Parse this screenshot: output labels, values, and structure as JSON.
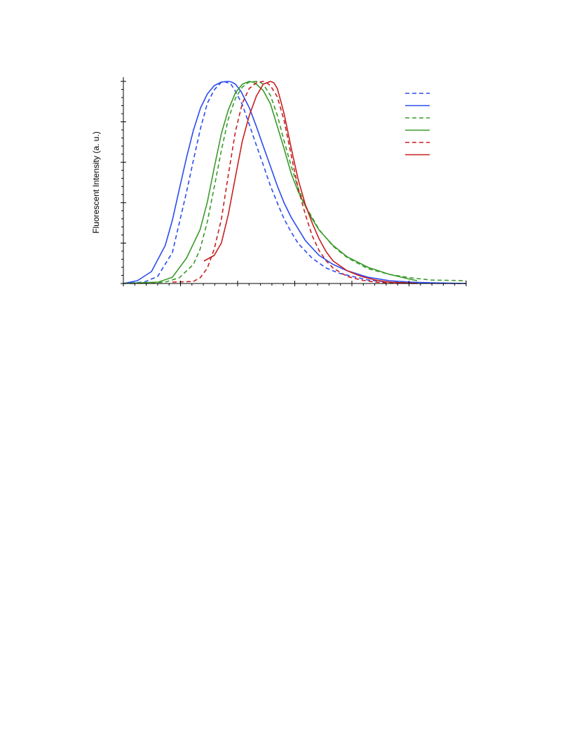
{
  "chart_data": {
    "type": "line",
    "title": "",
    "xlabel": "",
    "ylabel": "Fluorescent Intensity (a. u.)",
    "xlim": [
      0,
      1
    ],
    "ylim": [
      0,
      1
    ],
    "grid": false,
    "legend": {
      "position": "top-right",
      "labels_visible": false
    },
    "x_ticks": {
      "major_count": 7,
      "minor_per_major": 4,
      "labels": []
    },
    "y_ticks": {
      "major_count": 6,
      "minor_per_major": 4,
      "labels": []
    },
    "series": [
      {
        "color": "#2a4cf0",
        "dash": "dashed",
        "x": [
          0.0,
          0.061,
          0.1,
          0.143,
          0.184,
          0.204,
          0.225,
          0.245,
          0.265,
          0.286,
          0.294,
          0.314,
          0.327,
          0.347,
          0.367,
          0.388,
          0.408,
          0.429,
          0.449,
          0.469,
          0.49,
          0.51,
          0.551,
          0.592,
          0.633,
          0.714,
          0.776,
          0.837,
          0.898,
          1.0
        ],
        "y": [
          0.0,
          0.007,
          0.035,
          0.153,
          0.451,
          0.608,
          0.767,
          0.892,
          0.958,
          0.997,
          1.0,
          0.986,
          0.951,
          0.885,
          0.788,
          0.684,
          0.587,
          0.483,
          0.399,
          0.319,
          0.253,
          0.198,
          0.125,
          0.076,
          0.049,
          0.017,
          0.007,
          0.003,
          0.001,
          0.0
        ]
      },
      {
        "color": "#2a4cf0",
        "dash": "solid",
        "x": [
          0.0,
          0.041,
          0.082,
          0.122,
          0.143,
          0.163,
          0.184,
          0.204,
          0.225,
          0.245,
          0.265,
          0.286,
          0.306,
          0.316,
          0.327,
          0.343,
          0.367,
          0.388,
          0.408,
          0.429,
          0.449,
          0.469,
          0.49,
          0.531,
          0.571,
          0.612,
          0.653,
          0.714,
          0.776,
          0.837,
          0.898,
          1.0
        ],
        "y": [
          0.0,
          0.014,
          0.059,
          0.188,
          0.313,
          0.465,
          0.622,
          0.757,
          0.868,
          0.938,
          0.979,
          0.997,
          1.0,
          0.997,
          0.986,
          0.951,
          0.871,
          0.777,
          0.68,
          0.58,
          0.483,
          0.399,
          0.326,
          0.212,
          0.139,
          0.094,
          0.063,
          0.031,
          0.014,
          0.007,
          0.003,
          0.0
        ]
      },
      {
        "color": "#3a9a2a",
        "dash": "dashed",
        "x": [
          0.02,
          0.122,
          0.163,
          0.204,
          0.224,
          0.245,
          0.265,
          0.286,
          0.306,
          0.327,
          0.347,
          0.367,
          0.388,
          0.398,
          0.408,
          0.429,
          0.449,
          0.469,
          0.49,
          0.51,
          0.531,
          0.571,
          0.612,
          0.653,
          0.714,
          0.776,
          0.837,
          0.898,
          1.0
        ],
        "y": [
          0.0,
          0.007,
          0.028,
          0.094,
          0.17,
          0.306,
          0.476,
          0.66,
          0.812,
          0.917,
          0.972,
          0.997,
          1.0,
          0.997,
          0.986,
          0.931,
          0.833,
          0.705,
          0.58,
          0.472,
          0.385,
          0.267,
          0.184,
          0.128,
          0.073,
          0.045,
          0.028,
          0.017,
          0.014
        ]
      },
      {
        "color": "#3a9a2a",
        "dash": "solid",
        "x": [
          0.0,
          0.061,
          0.102,
          0.143,
          0.184,
          0.224,
          0.245,
          0.265,
          0.286,
          0.306,
          0.327,
          0.347,
          0.367,
          0.378,
          0.388,
          0.408,
          0.429,
          0.449,
          0.469,
          0.49,
          0.51,
          0.531,
          0.551,
          0.571,
          0.612,
          0.653,
          0.714,
          0.776,
          0.837,
          0.857
        ],
        "y": [
          0.0,
          0.004,
          0.007,
          0.031,
          0.125,
          0.267,
          0.403,
          0.573,
          0.743,
          0.858,
          0.944,
          0.986,
          1.0,
          0.997,
          0.986,
          0.955,
          0.889,
          0.778,
          0.667,
          0.542,
          0.455,
          0.382,
          0.319,
          0.264,
          0.188,
          0.132,
          0.08,
          0.045,
          0.021,
          0.014
        ]
      },
      {
        "color": "#c81e1e",
        "dash": "dashed",
        "x": [
          0.143,
          0.204,
          0.224,
          0.245,
          0.265,
          0.286,
          0.306,
          0.327,
          0.347,
          0.367,
          0.388,
          0.408,
          0.418,
          0.429,
          0.449,
          0.469,
          0.49,
          0.51,
          0.531,
          0.551,
          0.571,
          0.592,
          0.612,
          0.653,
          0.694,
          0.735,
          0.776,
          0.816,
          0.857
        ],
        "y": [
          0.007,
          0.01,
          0.028,
          0.076,
          0.17,
          0.319,
          0.535,
          0.753,
          0.892,
          0.965,
          0.993,
          1.0,
          0.993,
          0.979,
          0.924,
          0.806,
          0.632,
          0.469,
          0.34,
          0.236,
          0.163,
          0.111,
          0.076,
          0.035,
          0.017,
          0.007,
          0.003,
          0.001,
          0.0
        ]
      },
      {
        "color": "#c81e1e",
        "dash": "solid",
        "x": [
          0.235,
          0.265,
          0.286,
          0.306,
          0.327,
          0.347,
          0.367,
          0.388,
          0.408,
          0.429,
          0.439,
          0.449,
          0.459,
          0.469,
          0.48,
          0.49,
          0.51,
          0.531,
          0.551,
          0.571,
          0.592,
          0.612,
          0.653,
          0.694,
          0.735,
          0.776,
          0.857
        ],
        "y": [
          0.111,
          0.139,
          0.201,
          0.34,
          0.528,
          0.705,
          0.83,
          0.927,
          0.986,
          1.0,
          0.993,
          0.965,
          0.903,
          0.84,
          0.75,
          0.667,
          0.514,
          0.389,
          0.299,
          0.221,
          0.156,
          0.111,
          0.063,
          0.035,
          0.017,
          0.007,
          0.0
        ]
      }
    ]
  }
}
